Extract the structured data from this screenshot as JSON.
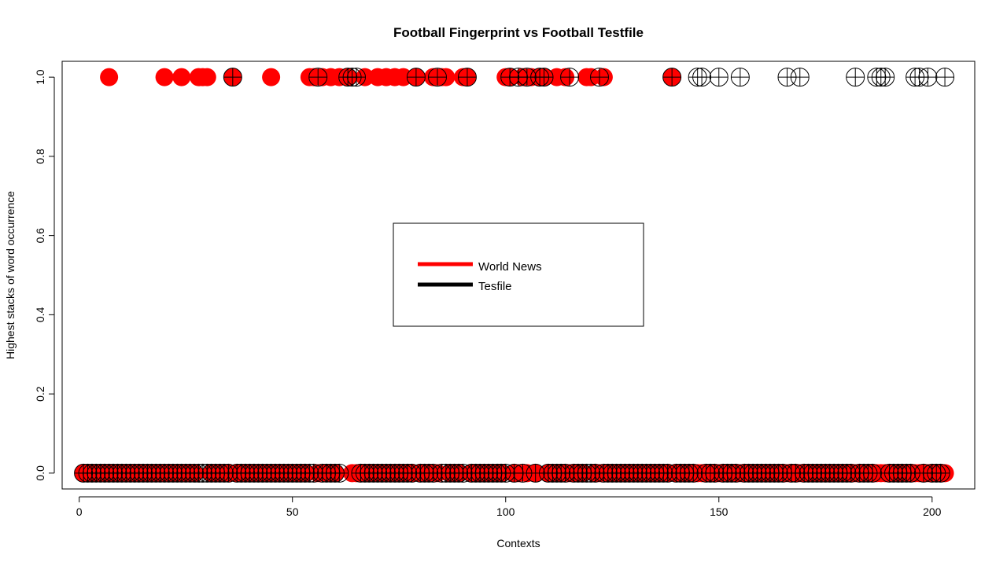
{
  "chart_data": {
    "type": "scatter",
    "title": "Football Fingerprint vs Football Testfile",
    "xlabel": "Contexts",
    "ylabel": "Highest stacks of word occurrence",
    "xlim": [
      -4,
      210
    ],
    "ylim": [
      -0.04,
      1.04
    ],
    "xticks": [
      0,
      50,
      100,
      150,
      200
    ],
    "yticks": [
      0.0,
      0.2,
      0.4,
      0.6,
      0.8,
      1.0
    ],
    "xtick_labels": [
      "0",
      "50",
      "100",
      "150",
      "200"
    ],
    "ytick_labels": [
      "0.0",
      "0.2",
      "0.4",
      "0.6",
      "0.8",
      "1.0"
    ],
    "legend": {
      "placement": "center",
      "entries": [
        {
          "label": "World News",
          "color": "#ff0000"
        },
        {
          "label": "Tesfile",
          "color": "#000000"
        }
      ]
    },
    "series": [
      {
        "name": "World News",
        "color": "#ff0000",
        "marker": "filled-circle",
        "x_at_one": [
          7,
          20,
          24,
          28,
          29,
          30,
          36,
          45,
          54,
          55,
          57,
          59,
          61,
          63,
          67,
          70,
          72,
          74,
          76,
          79,
          83,
          85,
          86,
          90,
          91,
          100,
          101,
          104,
          106,
          108,
          109,
          112,
          114,
          119,
          120,
          123,
          139
        ],
        "x_range": [
          1,
          203
        ],
        "x_at_zero_excluded": [
          62,
          106
        ]
      },
      {
        "name": "Tesfile",
        "color": "#000000",
        "marker": "circle-plus",
        "x_at_one": [
          36,
          56,
          63,
          64,
          65,
          79,
          84,
          91,
          101,
          103,
          105,
          108,
          109,
          115,
          122,
          139,
          145,
          146,
          150,
          155,
          166,
          169,
          182,
          187,
          188,
          189,
          196,
          197,
          199,
          203
        ],
        "x_range": [
          1,
          203
        ],
        "x_at_zero_excluded": [
          62,
          106
        ]
      }
    ]
  }
}
